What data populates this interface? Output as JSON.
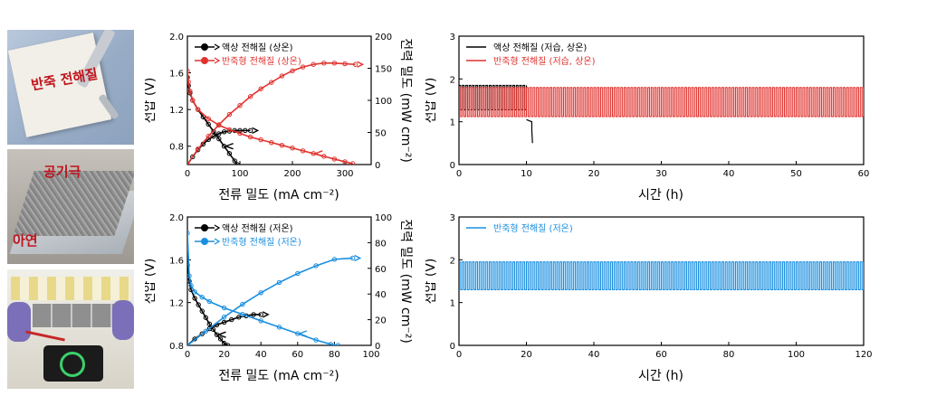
{
  "photos": {
    "photo1": {
      "label": "반죽 전해질"
    },
    "photo2": {
      "label_top": "공기극",
      "label_bottom": "아연"
    },
    "photo3": {}
  },
  "colors": {
    "black": "#000000",
    "red": "#e0332f",
    "blue": "#1a8fe0"
  },
  "chart_data": [
    {
      "id": "pol_room",
      "type": "line",
      "xlabel": "전류 밀도 (mA cm⁻²)",
      "ylabel": "전압 (V)",
      "y2label": "전력 밀도 (mW cm⁻²)",
      "xlim": [
        0,
        350
      ],
      "ylim": [
        0.6,
        2.0
      ],
      "y2lim": [
        0,
        200
      ],
      "xticks": [
        "0",
        "100",
        "200",
        "300"
      ],
      "yticks": [
        "0.8",
        "1.2",
        "1.6",
        "2.0"
      ],
      "y2ticks": [
        "0",
        "50",
        "100",
        "150",
        "200"
      ],
      "legend_position": "top-left",
      "series": [
        {
          "name": "액상 전해질 (상온)",
          "color": "#000000",
          "voltage": {
            "x": [
              0,
              2,
              5,
              10,
              20,
              30,
              40,
              50,
              60,
              70,
              80,
              90,
              95
            ],
            "y": [
              1.55,
              1.46,
              1.38,
              1.3,
              1.2,
              1.12,
              1.04,
              0.96,
              0.88,
              0.8,
              0.72,
              0.64,
              0.6
            ]
          },
          "power": {
            "x": [
              0,
              10,
              20,
              30,
              40,
              50,
              60,
              70,
              80,
              90,
              100,
              110,
              120
            ],
            "y": [
              0,
              12,
              23,
              32,
              39,
              44,
              48,
              51,
              52,
              53,
              53,
              53,
              53
            ]
          }
        },
        {
          "name": "반죽형 전해질 (상온)",
          "color": "#e0332f",
          "voltage": {
            "x": [
              0,
              2,
              5,
              10,
              20,
              40,
              60,
              80,
              100,
              120,
              140,
              160,
              180,
              200,
              220,
              240,
              260,
              280,
              300,
              315
            ],
            "y": [
              1.62,
              1.5,
              1.4,
              1.3,
              1.2,
              1.1,
              1.03,
              0.98,
              0.94,
              0.9,
              0.87,
              0.84,
              0.81,
              0.78,
              0.75,
              0.72,
              0.69,
              0.66,
              0.63,
              0.61
            ]
          },
          "power": {
            "x": [
              0,
              20,
              40,
              60,
              80,
              100,
              120,
              140,
              160,
              180,
              200,
              220,
              240,
              260,
              280,
              300,
              320
            ],
            "y": [
              0,
              24,
              44,
              62,
              78,
              92,
              106,
              118,
              128,
              138,
              146,
              152,
              156,
              158,
              158,
              157,
              156
            ]
          }
        }
      ]
    },
    {
      "id": "cyc_room",
      "type": "line",
      "xlabel": "시간 (h)",
      "ylabel": "전압 (V)",
      "xlim": [
        0,
        60
      ],
      "ylim": [
        0,
        3
      ],
      "xticks": [
        "0",
        "10",
        "20",
        "30",
        "40",
        "50",
        "60"
      ],
      "yticks": [
        "0",
        "1",
        "2",
        "3"
      ],
      "legend_position": "top-left",
      "series": [
        {
          "name": "액상 전해질 (저습, 상온)",
          "color": "#000000",
          "cycle_period_h": 0.5,
          "high_v": 1.85,
          "low_v": 1.28,
          "end_h": 10.0,
          "fail_x": [
            10.0,
            10.8,
            10.8,
            10.9
          ],
          "fail_y": [
            1.05,
            1.0,
            0.8,
            0.5
          ]
        },
        {
          "name": "반죽형 전해질 (저습, 상온)",
          "color": "#e0332f",
          "cycle_period_h": 0.5,
          "high_v": 1.8,
          "low_v": 1.12,
          "start_h": 0,
          "end_h": 60
        }
      ]
    },
    {
      "id": "pol_low",
      "type": "line",
      "xlabel": "전류 밀도 (mA cm⁻²)",
      "ylabel": "전압 (V)",
      "y2label": "전력 밀도 (mW cm⁻²)",
      "xlim": [
        0,
        100
      ],
      "ylim": [
        0.8,
        2.0
      ],
      "y2lim": [
        0,
        100
      ],
      "xticks": [
        "0",
        "20",
        "40",
        "60",
        "80",
        "100"
      ],
      "yticks": [
        "0.8",
        "1.2",
        "1.6",
        "2.0"
      ],
      "y2ticks": [
        "0",
        "20",
        "40",
        "60",
        "80",
        "100"
      ],
      "legend_position": "top-left",
      "series": [
        {
          "name": "액상 전해질 (저온)",
          "color": "#000000",
          "voltage": {
            "x": [
              0,
              1,
              2,
              4,
              6,
              8,
              10,
              12,
              14,
              16,
              18,
              20,
              22
            ],
            "y": [
              1.55,
              1.4,
              1.32,
              1.24,
              1.18,
              1.12,
              1.06,
              1.0,
              0.95,
              0.9,
              0.86,
              0.82,
              0.8
            ]
          },
          "power": {
            "x": [
              0,
              4,
              8,
              12,
              16,
              20,
              24,
              28,
              32,
              36,
              40
            ],
            "y": [
              0,
              5,
              9,
              13,
              16,
              18,
              20,
              22,
              23,
              24,
              24
            ]
          }
        },
        {
          "name": "반죽형 전해질 (저온)",
          "color": "#1a8fe0",
          "voltage": {
            "x": [
              0,
              1,
              2,
              4,
              8,
              12,
              20,
              30,
              40,
              50,
              60,
              70,
              78,
              82
            ],
            "y": [
              1.85,
              1.45,
              1.36,
              1.3,
              1.25,
              1.21,
              1.15,
              1.09,
              1.03,
              0.97,
              0.91,
              0.85,
              0.81,
              0.8
            ]
          },
          "power": {
            "x": [
              0,
              10,
              20,
              30,
              40,
              50,
              60,
              70,
              80,
              90
            ],
            "y": [
              0,
              11,
              22,
              32,
              41,
              49,
              56,
              62,
              67,
              68
            ]
          }
        }
      ]
    },
    {
      "id": "cyc_low",
      "type": "line",
      "xlabel": "시간 (h)",
      "ylabel": "전압 (V)",
      "xlim": [
        0,
        120
      ],
      "ylim": [
        0,
        3
      ],
      "xticks": [
        "0",
        "20",
        "40",
        "60",
        "80",
        "100",
        "120"
      ],
      "yticks": [
        "0",
        "1",
        "2",
        "3"
      ],
      "legend_position": "top-left",
      "series": [
        {
          "name": "반죽형 전해질 (저온)",
          "color": "#1a8fe0",
          "cycle_period_h": 1.0,
          "high_v": 1.95,
          "low_v": 1.3,
          "start_h": 0,
          "end_h": 120
        }
      ]
    }
  ]
}
